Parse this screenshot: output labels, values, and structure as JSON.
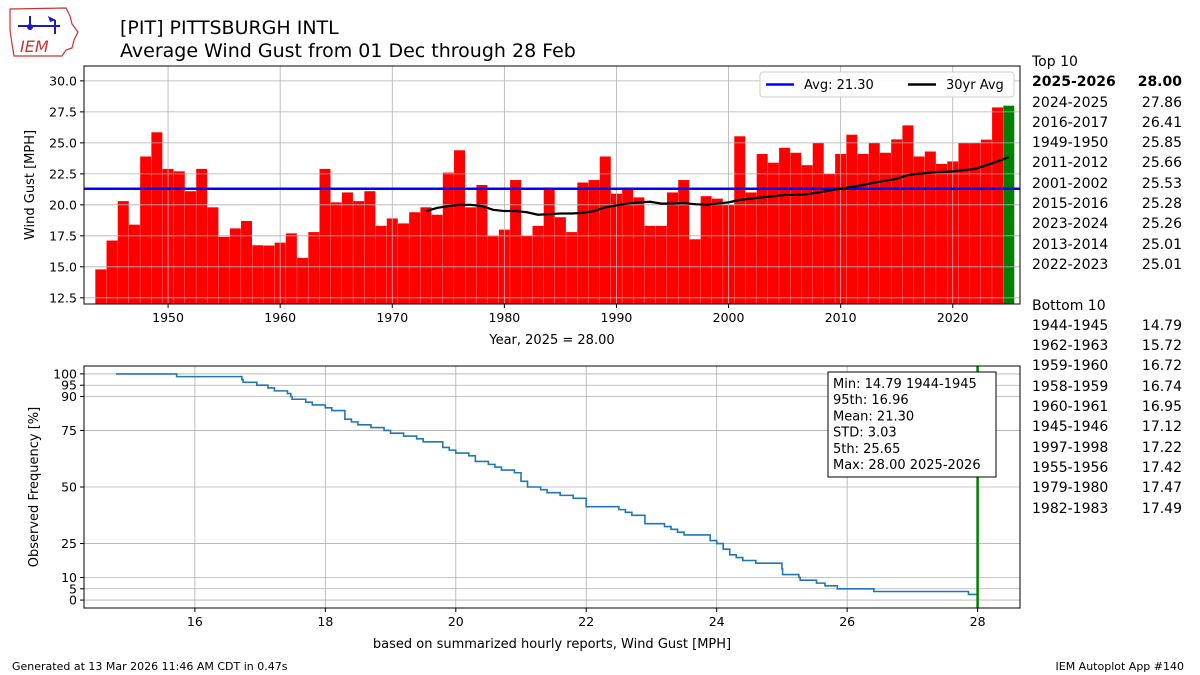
{
  "header": {
    "title": "[PIT] PITTSBURGH INTL",
    "subtitle": "Average Wind Gust from 01 Dec through 28 Feb",
    "logo_text": "IEM"
  },
  "footer": {
    "generated": "Generated at 13 Mar 2026 11:46 AM CDT in 0.47s",
    "app": "IEM Autoplot App #140"
  },
  "side_panel": {
    "top_title": "Top 10",
    "top": [
      {
        "season": "2025-2026",
        "value": "28.00",
        "bold": true
      },
      {
        "season": "2024-2025",
        "value": "27.86"
      },
      {
        "season": "2016-2017",
        "value": "26.41"
      },
      {
        "season": "1949-1950",
        "value": "25.85"
      },
      {
        "season": "2011-2012",
        "value": "25.66"
      },
      {
        "season": "2001-2002",
        "value": "25.53"
      },
      {
        "season": "2015-2016",
        "value": "25.28"
      },
      {
        "season": "2023-2024",
        "value": "25.26"
      },
      {
        "season": "2013-2014",
        "value": "25.01"
      },
      {
        "season": "2022-2023",
        "value": "25.01"
      }
    ],
    "bottom_title": "Bottom 10",
    "bottom": [
      {
        "season": "1944-1945",
        "value": "14.79"
      },
      {
        "season": "1962-1963",
        "value": "15.72"
      },
      {
        "season": "1959-1960",
        "value": "16.72"
      },
      {
        "season": "1958-1959",
        "value": "16.74"
      },
      {
        "season": "1960-1961",
        "value": "16.95"
      },
      {
        "season": "1945-1946",
        "value": "17.12"
      },
      {
        "season": "1997-1998",
        "value": "17.22"
      },
      {
        "season": "1955-1956",
        "value": "17.42"
      },
      {
        "season": "1979-1980",
        "value": "17.47"
      },
      {
        "season": "1982-1983",
        "value": "17.49"
      }
    ]
  },
  "chart_data": [
    {
      "type": "bar",
      "ylabel": "Wind Gust [MPH]",
      "xlabel": "Year, 2025 = 28.00",
      "xlim": [
        1942.5,
        2026.0
      ],
      "ylim": [
        12.0,
        31.2
      ],
      "xticks": [
        1950,
        1960,
        1970,
        1980,
        1990,
        2000,
        2010,
        2020
      ],
      "yticks": [
        12.5,
        15.0,
        17.5,
        20.0,
        22.5,
        25.0,
        27.5,
        30.0
      ],
      "grid": true,
      "legend_position": "top-right",
      "bar_color": "#ff0000",
      "highlight_year": 2025,
      "highlight_color": "#008000",
      "years": [
        1944,
        1945,
        1946,
        1947,
        1948,
        1949,
        1950,
        1951,
        1952,
        1953,
        1954,
        1955,
        1956,
        1957,
        1958,
        1959,
        1960,
        1961,
        1962,
        1963,
        1964,
        1965,
        1966,
        1967,
        1968,
        1969,
        1970,
        1971,
        1972,
        1973,
        1974,
        1975,
        1976,
        1977,
        1978,
        1979,
        1980,
        1981,
        1982,
        1983,
        1984,
        1985,
        1986,
        1987,
        1988,
        1989,
        1990,
        1991,
        1992,
        1993,
        1994,
        1995,
        1996,
        1997,
        1998,
        1999,
        2000,
        2001,
        2002,
        2003,
        2004,
        2005,
        2006,
        2007,
        2008,
        2009,
        2010,
        2011,
        2012,
        2013,
        2014,
        2015,
        2016,
        2017,
        2018,
        2019,
        2020,
        2021,
        2022,
        2023,
        2024,
        2025
      ],
      "values": [
        14.79,
        17.12,
        20.3,
        18.4,
        23.9,
        25.85,
        22.9,
        22.7,
        21.1,
        22.9,
        19.8,
        17.42,
        18.1,
        18.7,
        16.74,
        16.72,
        16.95,
        17.7,
        15.72,
        17.8,
        22.9,
        20.2,
        21.0,
        20.3,
        21.1,
        18.3,
        18.9,
        18.5,
        19.4,
        19.8,
        19.2,
        22.6,
        24.4,
        19.8,
        21.6,
        17.47,
        18.0,
        22.0,
        17.49,
        18.3,
        21.4,
        19.0,
        17.8,
        21.8,
        22.0,
        23.9,
        20.9,
        21.3,
        20.6,
        18.3,
        18.3,
        21.0,
        22.0,
        17.22,
        20.7,
        20.5,
        20.0,
        25.53,
        21.0,
        24.1,
        23.4,
        24.6,
        24.2,
        23.2,
        25.0,
        22.5,
        24.1,
        25.66,
        24.1,
        25.01,
        24.2,
        25.28,
        26.41,
        23.9,
        24.3,
        23.3,
        23.5,
        25.0,
        25.01,
        25.26,
        27.86,
        28.0
      ],
      "series": [
        {
          "name": "Avg: 21.30",
          "type": "hline",
          "value": 21.3,
          "color": "#0000ff"
        },
        {
          "name": "30yr Avg",
          "type": "line",
          "color": "#000000",
          "x": [
            1973,
            1974,
            1975,
            1976,
            1977,
            1978,
            1979,
            1980,
            1981,
            1982,
            1983,
            1984,
            1985,
            1986,
            1987,
            1988,
            1989,
            1990,
            1991,
            1992,
            1993,
            1994,
            1995,
            1996,
            1997,
            1998,
            1999,
            2000,
            2001,
            2002,
            2003,
            2004,
            2005,
            2006,
            2007,
            2008,
            2009,
            2010,
            2011,
            2012,
            2013,
            2014,
            2015,
            2016,
            2017,
            2018,
            2019,
            2020,
            2021,
            2022,
            2023,
            2024,
            2025
          ],
          "y": [
            19.5,
            19.75,
            19.9,
            20.0,
            20.0,
            19.9,
            19.6,
            19.5,
            19.5,
            19.4,
            19.2,
            19.25,
            19.3,
            19.3,
            19.35,
            19.5,
            19.8,
            19.95,
            20.1,
            20.2,
            20.25,
            20.1,
            20.1,
            20.15,
            20.05,
            20.0,
            20.1,
            20.2,
            20.4,
            20.5,
            20.6,
            20.7,
            20.8,
            20.8,
            20.85,
            21.0,
            21.15,
            21.3,
            21.45,
            21.6,
            21.8,
            21.95,
            22.1,
            22.4,
            22.5,
            22.6,
            22.65,
            22.7,
            22.8,
            22.9,
            23.2,
            23.5,
            23.85
          ]
        }
      ]
    },
    {
      "type": "line",
      "ylabel": "Observed Frequency [%]",
      "xlabel": "based on summarized hourly reports, Wind Gust [MPH]",
      "xlim": [
        14.3,
        28.65
      ],
      "ylim": [
        -3.5,
        103.5
      ],
      "xticks": [
        16,
        18,
        20,
        22,
        24,
        26,
        28
      ],
      "yticks": [
        0,
        5,
        10,
        25,
        50,
        75,
        90,
        95,
        100
      ],
      "grid": true,
      "line_color": "#1f77b4",
      "marker_value": 28.0,
      "marker_color": "#008000",
      "x": [
        14.79,
        15.72,
        16.72,
        16.74,
        16.95,
        17.12,
        17.22,
        17.42,
        17.47,
        17.49,
        17.7,
        17.8,
        18.0,
        18.1,
        18.3,
        18.3,
        18.3,
        18.4,
        18.5,
        18.7,
        18.9,
        19.0,
        19.2,
        19.4,
        19.5,
        19.8,
        19.8,
        19.9,
        20.0,
        20.2,
        20.3,
        20.3,
        20.5,
        20.6,
        20.7,
        20.9,
        21.0,
        21.0,
        21.0,
        21.1,
        21.1,
        21.3,
        21.4,
        21.6,
        21.8,
        22.0,
        22.0,
        22.0,
        22.5,
        22.6,
        22.7,
        22.9,
        22.9,
        22.9,
        23.2,
        23.3,
        23.4,
        23.5,
        23.9,
        23.9,
        24.0,
        24.1,
        24.1,
        24.2,
        24.2,
        24.3,
        24.4,
        24.6,
        25.0,
        25.0,
        25.01,
        25.01,
        25.26,
        25.28,
        25.53,
        25.66,
        25.85,
        26.41,
        27.86,
        28.0
      ],
      "y": [
        100.0,
        98.8,
        97.5,
        96.3,
        95.0,
        93.8,
        92.5,
        91.3,
        90.0,
        88.8,
        87.5,
        86.3,
        85.0,
        83.8,
        82.5,
        81.3,
        80.0,
        78.8,
        77.5,
        76.3,
        75.0,
        73.8,
        72.5,
        71.3,
        70.0,
        68.8,
        67.5,
        66.3,
        65.0,
        63.8,
        62.5,
        61.3,
        60.0,
        58.8,
        57.5,
        56.3,
        55.0,
        53.8,
        52.5,
        51.3,
        50.0,
        48.8,
        47.5,
        46.3,
        45.0,
        43.8,
        42.5,
        41.3,
        40.0,
        38.8,
        37.5,
        36.3,
        35.0,
        33.8,
        32.5,
        31.3,
        30.0,
        28.8,
        27.5,
        26.3,
        25.0,
        23.8,
        22.5,
        21.3,
        20.0,
        18.8,
        17.5,
        16.3,
        15.0,
        13.8,
        12.5,
        11.3,
        10.0,
        8.8,
        7.5,
        6.3,
        5.0,
        3.8,
        2.5,
        1.3
      ],
      "stats_box": [
        "Min: 14.79 1944-1945",
        "95th: 16.96",
        "Mean: 21.30",
        "STD: 3.03",
        "5th: 25.65",
        "Max: 28.00 2025-2026"
      ]
    }
  ]
}
